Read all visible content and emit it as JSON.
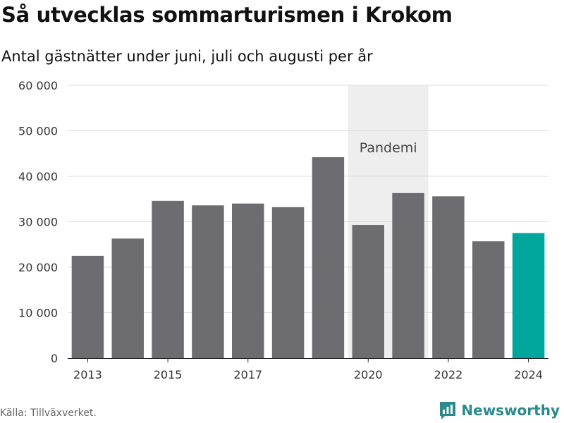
{
  "header": {
    "title": "Så utvecklas sommarturismen i Krokom",
    "subtitle": "Antal gästnätter under juni, juli och augusti per år"
  },
  "footer": {
    "source": "Källa: Tillväxverket.",
    "brand": "Newsworthy"
  },
  "colors": {
    "bar": "#6d6c71",
    "highlight": "#00a59b",
    "band": "#eeeeee",
    "grid": "#dddddd"
  },
  "chart_data": {
    "type": "bar",
    "title": "Så utvecklas sommarturismen i Krokom",
    "subtitle": "Antal gästnätter under juni, juli och augusti per år",
    "xlabel": "",
    "ylabel": "",
    "x": [
      2013,
      2014,
      2015,
      2016,
      2017,
      2018,
      2019,
      2020,
      2021,
      2022,
      2023,
      2024
    ],
    "values": [
      22500,
      26300,
      34600,
      33600,
      34000,
      33200,
      44200,
      29300,
      36300,
      35600,
      25700,
      27500
    ],
    "highlight": [
      2024
    ],
    "ylim": [
      0,
      60000
    ],
    "yticks": [
      0,
      10000,
      20000,
      30000,
      40000,
      50000,
      60000
    ],
    "ytick_labels": [
      "0",
      "10 000",
      "20 000",
      "30 000",
      "40 000",
      "50 000",
      "60 000"
    ],
    "xticks": [
      2013,
      2015,
      2017,
      2020,
      2022,
      2024
    ],
    "xtick_labels": [
      "2013",
      "2015",
      "2017",
      "2020",
      "2022",
      "2024"
    ],
    "grid": true,
    "band": {
      "from": 2019.5,
      "to": 2021.5,
      "label": "Pandemi"
    }
  }
}
